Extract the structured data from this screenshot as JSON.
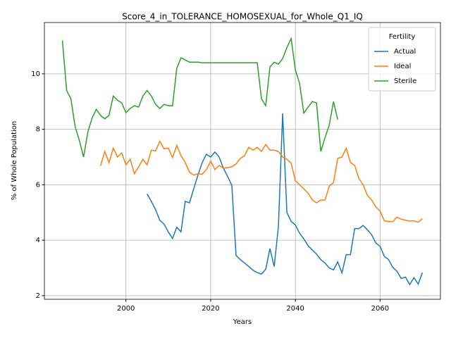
{
  "chart_data": {
    "type": "line",
    "title": "Score_4_in_TOLERANCE_HOMOSEXUAL_for_Whole_Q1_IQ",
    "xlabel": "Years",
    "ylabel": "% of Whole Population",
    "x": [
      1985,
      1986,
      1987,
      1988,
      1989,
      1990,
      1991,
      1992,
      1993,
      1994,
      1995,
      1996,
      1997,
      1998,
      1999,
      2000,
      2001,
      2002,
      2003,
      2004,
      2005,
      2006,
      2007,
      2008,
      2009,
      2010,
      2011,
      2012,
      2013,
      2014,
      2015,
      2016,
      2017,
      2018,
      2019,
      2020,
      2021,
      2022,
      2023,
      2024,
      2025,
      2026,
      2027,
      2028,
      2029,
      2030,
      2031,
      2032,
      2033,
      2034,
      2035,
      2036,
      2037,
      2038,
      2039,
      2040,
      2041,
      2042,
      2043,
      2044,
      2045,
      2046,
      2047,
      2048,
      2049,
      2050,
      2051,
      2052,
      2053,
      2054,
      2055,
      2056,
      2057,
      2058,
      2059,
      2060,
      2061,
      2062,
      2063,
      2064,
      2065,
      2066,
      2067,
      2068,
      2069,
      2070
    ],
    "series": [
      {
        "name": "Actual",
        "color": "#1f77b4",
        "values": [
          null,
          null,
          null,
          null,
          null,
          null,
          null,
          null,
          null,
          null,
          null,
          null,
          null,
          null,
          null,
          null,
          null,
          null,
          null,
          null,
          5.67,
          5.4,
          5.1,
          4.72,
          4.58,
          4.3,
          4.06,
          4.47,
          4.3,
          5.4,
          5.35,
          5.85,
          6.35,
          6.8,
          7.1,
          7.0,
          7.18,
          7.0,
          6.6,
          6.3,
          5.98,
          3.45,
          3.3,
          3.18,
          3.05,
          2.92,
          2.83,
          2.78,
          2.95,
          3.7,
          3.05,
          4.5,
          8.57,
          5.0,
          4.68,
          4.55,
          4.25,
          4.05,
          3.8,
          3.65,
          3.5,
          3.3,
          3.18,
          3.0,
          2.93,
          3.22,
          2.82,
          3.48,
          3.48,
          4.42,
          4.42,
          4.53,
          4.38,
          4.2,
          3.9,
          3.78,
          3.42,
          3.3,
          3.02,
          2.88,
          2.62,
          2.67,
          2.4,
          2.65,
          2.42,
          2.83
        ]
      },
      {
        "name": "Ideal",
        "color": "#ff7f0e",
        "values": [
          null,
          null,
          null,
          null,
          null,
          null,
          null,
          null,
          null,
          6.68,
          7.2,
          6.8,
          7.32,
          7.0,
          7.15,
          6.72,
          6.92,
          6.4,
          6.65,
          6.92,
          6.72,
          7.25,
          7.22,
          7.57,
          7.3,
          7.32,
          6.98,
          7.42,
          7.05,
          6.8,
          6.45,
          6.35,
          6.4,
          6.38,
          6.55,
          6.85,
          6.55,
          6.7,
          6.6,
          6.62,
          6.65,
          6.75,
          6.95,
          7.05,
          7.35,
          7.25,
          7.35,
          7.2,
          7.45,
          7.25,
          7.25,
          7.2,
          7.0,
          6.92,
          6.78,
          6.15,
          6.0,
          5.85,
          5.7,
          5.45,
          5.35,
          5.45,
          5.45,
          5.95,
          6.08,
          6.95,
          7.0,
          7.32,
          6.8,
          6.7,
          6.22,
          6.0,
          5.62,
          5.45,
          5.2,
          5.05,
          4.7,
          4.68,
          4.67,
          4.83,
          4.76,
          4.72,
          4.69,
          4.7,
          4.65,
          4.78
        ]
      },
      {
        "name": "Sterile",
        "color": "#2ca02c",
        "values": [
          11.2,
          9.4,
          9.1,
          8.1,
          7.6,
          7.0,
          7.9,
          8.4,
          8.72,
          8.5,
          8.38,
          8.5,
          9.2,
          9.05,
          8.95,
          8.6,
          8.75,
          8.85,
          8.8,
          9.2,
          9.4,
          9.2,
          8.9,
          8.75,
          8.9,
          8.85,
          8.85,
          10.2,
          10.58,
          10.5,
          10.42,
          10.42,
          10.42,
          10.4,
          10.4,
          10.4,
          10.4,
          10.4,
          10.4,
          10.4,
          10.4,
          10.4,
          10.4,
          10.4,
          10.4,
          10.4,
          10.4,
          9.1,
          8.85,
          10.25,
          10.42,
          10.35,
          10.55,
          10.95,
          11.27,
          10.15,
          9.65,
          8.58,
          8.8,
          9.0,
          8.95,
          7.2,
          7.7,
          8.15,
          9.0,
          8.35,
          null,
          null,
          null,
          null,
          null,
          null,
          null,
          null,
          null,
          null,
          null,
          null,
          null,
          null,
          null,
          null,
          null,
          null,
          null,
          null
        ]
      }
    ],
    "xlim": [
      1980.75,
      2074.25
    ],
    "ylim": [
      1.87,
      11.85
    ],
    "xticks": [
      2000,
      2020,
      2040,
      2060
    ],
    "yticks": [
      2,
      4,
      6,
      8,
      10
    ],
    "grid": true,
    "legend_title": "Fertility",
    "legend_loc": "upper right"
  }
}
